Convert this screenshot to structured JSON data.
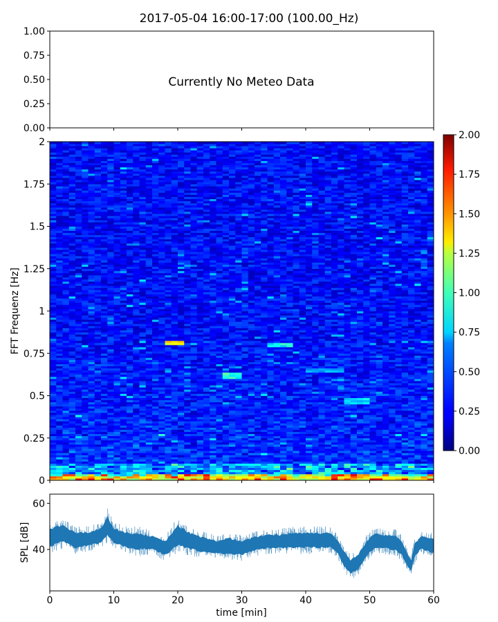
{
  "figure": {
    "title": "2017-05-04 16:00-17:00 (100.00_Hz)"
  },
  "chart_data": [
    {
      "type": "line",
      "id": "meteo",
      "annotation": "Currently No Meteo Data",
      "ylim": [
        0.0,
        1.0
      ],
      "yticks": [
        "0.00",
        "0.25",
        "0.50",
        "0.75",
        "1.00"
      ],
      "xlim": [
        0,
        60
      ],
      "series": []
    },
    {
      "type": "heatmap",
      "id": "spectrogram",
      "ylabel": "FFT Frequenz [Hz]",
      "xlim": [
        0,
        60
      ],
      "ylim": [
        0,
        2
      ],
      "yticks": [
        "0",
        "0.25",
        "0.5",
        "0.75",
        "1",
        "1.25",
        "1.5",
        "1.75",
        "2"
      ],
      "colorbar": {
        "range": [
          0.0,
          2.0
        ],
        "ticks": [
          "0.00",
          "0.25",
          "0.50",
          "0.75",
          "1.00",
          "1.25",
          "1.50",
          "1.75",
          "2.00"
        ],
        "colormap": "jet"
      },
      "bright_features": [
        {
          "t": [
            18,
            21
          ],
          "f": 0.81,
          "v": 1.5
        },
        {
          "t": [
            34,
            38
          ],
          "f": 0.8,
          "v": 0.9
        },
        {
          "t": [
            27,
            30
          ],
          "f": 0.62,
          "v": 1.0
        },
        {
          "t": [
            46,
            50
          ],
          "f": 0.47,
          "v": 0.8
        },
        {
          "t": [
            40,
            46
          ],
          "f": 0.65,
          "v": 0.7
        },
        {
          "t": [
            0,
            60
          ],
          "f": 0.01,
          "v": 1.4
        }
      ]
    },
    {
      "type": "area",
      "id": "spl",
      "ylabel": "SPL [dB]",
      "xlabel": "time [min]",
      "xlim": [
        0,
        60
      ],
      "ylim": [
        22,
        64
      ],
      "yticks": [
        40,
        60
      ],
      "xticks": [
        0,
        10,
        20,
        30,
        40,
        50,
        60
      ],
      "color": "#1f77b4",
      "envelope": {
        "x": [
          0,
          2,
          4,
          6,
          8,
          9,
          10,
          12,
          14,
          16,
          18,
          20,
          22,
          24,
          26,
          28,
          30,
          32,
          34,
          36,
          38,
          40,
          42,
          44,
          45,
          46,
          47,
          48,
          49,
          50,
          51,
          52,
          54,
          55,
          56,
          56.5,
          57,
          58,
          60
        ],
        "lower": [
          38,
          40,
          38,
          39,
          40,
          42,
          40,
          38,
          37,
          38,
          35,
          38,
          37,
          36,
          36,
          35,
          35,
          37,
          38,
          38,
          38,
          38,
          38,
          38,
          36,
          30,
          27,
          28,
          32,
          36,
          38,
          38,
          37,
          35,
          30,
          28,
          34,
          38,
          36
        ],
        "upper": [
          52,
          54,
          50,
          50,
          52,
          58,
          52,
          50,
          50,
          48,
          46,
          54,
          50,
          48,
          46,
          48,
          46,
          48,
          49,
          49,
          50,
          50,
          50,
          50,
          46,
          42,
          38,
          40,
          44,
          48,
          50,
          49,
          49,
          46,
          40,
          38,
          45,
          48,
          47
        ]
      }
    }
  ]
}
